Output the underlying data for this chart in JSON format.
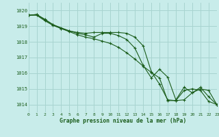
{
  "title": "Graphe pression niveau de la mer (hPa)",
  "bg_color": "#c8ecea",
  "grid_color": "#a8d4d0",
  "line_color": "#1a5c1a",
  "xlim": [
    0,
    23
  ],
  "ylim": [
    1013.5,
    1020.5
  ],
  "yticks": [
    1014,
    1015,
    1016,
    1017,
    1018,
    1019,
    1020
  ],
  "xticks": [
    0,
    1,
    2,
    3,
    4,
    5,
    6,
    7,
    8,
    9,
    10,
    11,
    12,
    13,
    14,
    15,
    16,
    17,
    18,
    19,
    20,
    21,
    22,
    23
  ],
  "series": [
    [
      1019.7,
      1019.75,
      1019.45,
      1019.1,
      1018.85,
      1018.7,
      1018.6,
      1018.55,
      1018.6,
      1018.6,
      1018.6,
      1018.6,
      1018.55,
      1018.3,
      1017.75,
      1016.1,
      1015.3,
      1014.3,
      1014.25,
      1014.9,
      1015.0,
      1014.9,
      1014.2,
      1014.0
    ],
    [
      1019.7,
      1019.75,
      1019.4,
      1019.1,
      1018.9,
      1018.7,
      1018.55,
      1018.45,
      1018.3,
      1018.55,
      1018.55,
      1018.4,
      1018.15,
      1017.6,
      1016.5,
      1015.7,
      1016.25,
      1015.75,
      1014.3,
      1015.1,
      1014.75,
      1015.1,
      1014.5,
      1014.0
    ],
    [
      1019.7,
      1019.7,
      1019.35,
      1019.05,
      1018.85,
      1018.65,
      1018.45,
      1018.3,
      1018.2,
      1018.05,
      1017.9,
      1017.65,
      1017.3,
      1016.9,
      1016.45,
      1016.05,
      1015.7,
      1014.25,
      1014.25,
      1014.3,
      1014.75,
      1015.0,
      1014.9,
      1014.0
    ]
  ]
}
